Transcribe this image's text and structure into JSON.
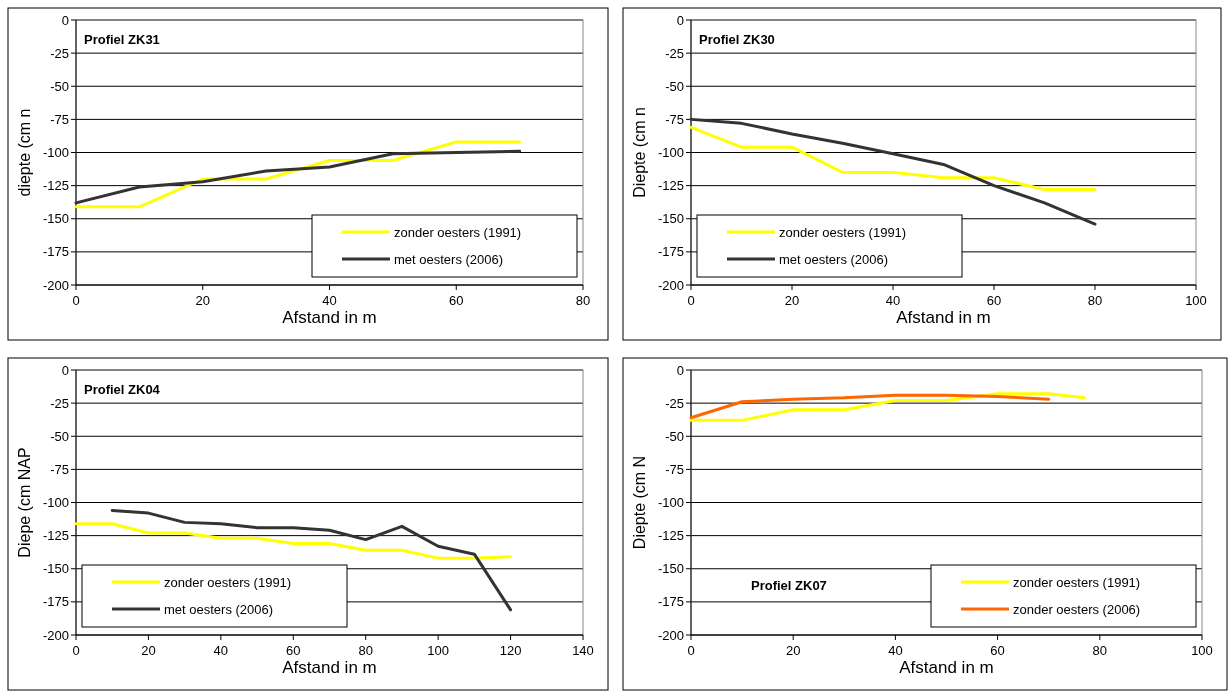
{
  "chart_data": [
    {
      "type": "line",
      "title": "Profiel ZK31",
      "xlabel": "Afstand in m",
      "ylabel": "diepte (cm n",
      "xlim": [
        0,
        80
      ],
      "xticks": [
        0,
        20,
        40,
        60,
        80
      ],
      "ylim": [
        -200,
        0
      ],
      "yticks": [
        -200,
        -175,
        -150,
        -125,
        -100,
        -75,
        -50,
        -25,
        0
      ],
      "grid": "y",
      "legend": "bottom right",
      "x": [
        0,
        10,
        20,
        30,
        40,
        50,
        60,
        70
      ],
      "series": [
        {
          "name": "zonder oesters (1991)",
          "color": "#ffff00",
          "values": [
            -141,
            -141,
            -120,
            -120,
            -106,
            -106,
            -92,
            -92
          ]
        },
        {
          "name": "met oesters (2006)",
          "color": "#333333",
          "values": [
            -138,
            -126,
            -122,
            -114,
            -111,
            -101,
            -100,
            -99
          ]
        }
      ]
    },
    {
      "type": "line",
      "title": "Profiel ZK30",
      "xlabel": "Afstand in m",
      "ylabel": "Diepte (cm n",
      "xlim": [
        0,
        100
      ],
      "xticks": [
        0,
        20,
        40,
        60,
        80,
        100
      ],
      "ylim": [
        -200,
        0
      ],
      "yticks": [
        -200,
        -175,
        -150,
        -125,
        -100,
        -75,
        -50,
        -25,
        0
      ],
      "grid": "y",
      "legend": "bottom left",
      "x": [
        0,
        10,
        20,
        30,
        40,
        50,
        60,
        70,
        80
      ],
      "series": [
        {
          "name": "zonder oesters (1991)",
          "color": "#ffff00",
          "values": [
            -81,
            -96,
            -96,
            -115,
            -115,
            -119,
            -119,
            -128,
            -128
          ]
        },
        {
          "name": "met oesters (2006)",
          "color": "#333333",
          "values": [
            -75,
            -78,
            -86,
            -93,
            -101,
            -109,
            -125,
            -138,
            -154
          ]
        }
      ]
    },
    {
      "type": "line",
      "title": "Profiel ZK04",
      "xlabel": "Afstand in m",
      "ylabel": "Diepe (cm NAP",
      "xlim": [
        0,
        140
      ],
      "xticks": [
        0,
        20,
        40,
        60,
        80,
        100,
        120,
        140
      ],
      "ylim": [
        -200,
        0
      ],
      "yticks": [
        -200,
        -175,
        -150,
        -125,
        -100,
        -75,
        -50,
        -25,
        0
      ],
      "grid": "y",
      "legend": "bottom left",
      "x": [
        0,
        10,
        20,
        30,
        40,
        50,
        60,
        70,
        80,
        90,
        100,
        110,
        120
      ],
      "series": [
        {
          "name": "zonder oesters (1991)",
          "color": "#ffff00",
          "values": [
            -116,
            -116,
            -123,
            -123,
            -127,
            -127,
            -131,
            -131,
            -136,
            -136,
            -142,
            -142,
            -141
          ]
        },
        {
          "name": "met oesters (2006)",
          "color": "#333333",
          "x": [
            10,
            20,
            30,
            40,
            50,
            60,
            70,
            80,
            90,
            100,
            110,
            120
          ],
          "values": [
            -106,
            -108,
            -115,
            -116,
            -119,
            -119,
            -121,
            -128,
            -118,
            -133,
            -139,
            -181
          ]
        }
      ]
    },
    {
      "type": "line",
      "title": "Profiel ZK07",
      "xlabel": "Afstand in m",
      "ylabel": "Diepte (cm N",
      "xlim": [
        0,
        100
      ],
      "xticks": [
        0,
        20,
        40,
        60,
        80,
        100
      ],
      "ylim": [
        -200,
        0
      ],
      "yticks": [
        -200,
        -175,
        -150,
        -125,
        -100,
        -75,
        -50,
        -25,
        0
      ],
      "grid": "y",
      "legend": "bottom right",
      "series": [
        {
          "name": "zonder oesters (1991)",
          "color": "#ffff00",
          "x": [
            0,
            10,
            20,
            30,
            40,
            50,
            60,
            70,
            77
          ],
          "values": [
            -38,
            -38,
            -30,
            -30,
            -23,
            -23,
            -18,
            -18,
            -21
          ]
        },
        {
          "name": "zonder oesters (2006)",
          "color": "#ff6600",
          "x": [
            0,
            10,
            20,
            30,
            40,
            50,
            60,
            70
          ],
          "values": [
            -36,
            -24,
            -22,
            -21,
            -19,
            -19,
            -20,
            -22
          ]
        }
      ]
    }
  ]
}
